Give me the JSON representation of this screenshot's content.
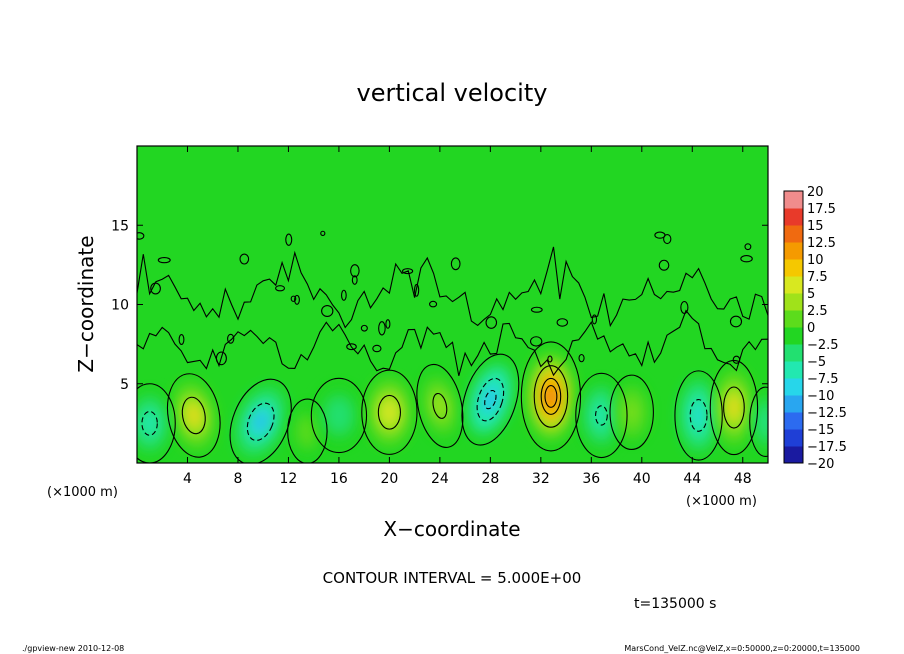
{
  "chart_data": {
    "type": "heatmap",
    "title": "vertical velocity",
    "xlabel": "X−coordinate",
    "ylabel": "Z−coordinate",
    "x_unit_label": "(×1000 m)",
    "y_unit_label": "(×1000 m)",
    "xlim": [
      0,
      50
    ],
    "ylim": [
      0,
      20
    ],
    "x_ticks": [
      4,
      8,
      12,
      16,
      20,
      24,
      28,
      32,
      36,
      40,
      44,
      48
    ],
    "y_ticks": [
      5,
      10,
      15
    ],
    "contour_interval_text": "CONTOUR INTERVAL = 5.000E+00",
    "time_text": "t=135000 s",
    "colorbar": {
      "levels": [
        "20",
        "17.5",
        "15",
        "12.5",
        "10",
        "7.5",
        "5",
        "2.5",
        "0",
        "−2.5",
        "−5",
        "−7.5",
        "−10",
        "−12.5",
        "−15",
        "−17.5",
        "−20"
      ],
      "colors": [
        "#7b1fa2",
        "#1a1aa0",
        "#1f3fd6",
        "#2c6bf0",
        "#29a6f0",
        "#27d6ea",
        "#22e8b0",
        "#22e070",
        "#22d622",
        "#5cdc1c",
        "#a0e21a",
        "#d8e820",
        "#f5c800",
        "#f59a00",
        "#f06a10",
        "#e83a2a",
        "#f08c8c"
      ]
    },
    "cells": [
      {
        "x": 4.5,
        "z": 3.0,
        "w": -0.5,
        "peak": 9,
        "sx": 1.3,
        "sz": 1.7
      },
      {
        "x": 1.0,
        "z": 2.5,
        "w": 0,
        "peak": -6,
        "sx": 1.3,
        "sz": 1.6
      },
      {
        "x": 9.8,
        "z": 2.6,
        "w": 1.1,
        "peak": -9,
        "sx": 1.4,
        "sz": 1.8
      },
      {
        "x": 13.5,
        "z": 2.0,
        "w": 0,
        "peak": 3,
        "sx": 1.0,
        "sz": 1.3
      },
      {
        "x": 16.0,
        "z": 3.0,
        "w": 0,
        "peak": -3,
        "sx": 1.4,
        "sz": 1.5
      },
      {
        "x": 20.0,
        "z": 3.2,
        "w": 0,
        "peak": 8,
        "sx": 1.4,
        "sz": 1.7
      },
      {
        "x": 24.0,
        "z": 3.6,
        "w": -0.6,
        "peak": 6,
        "sx": 1.1,
        "sz": 1.7
      },
      {
        "x": 28.0,
        "z": 4.0,
        "w": 0.9,
        "peak": -10,
        "sx": 1.3,
        "sz": 1.9
      },
      {
        "x": 32.8,
        "z": 4.2,
        "w": 0,
        "peak": 15,
        "sx": 1.5,
        "sz": 2.2
      },
      {
        "x": 36.8,
        "z": 3.0,
        "w": 0,
        "peak": -5,
        "sx": 1.3,
        "sz": 1.7
      },
      {
        "x": 39.2,
        "z": 3.2,
        "w": 0,
        "peak": 4,
        "sx": 1.1,
        "sz": 1.5
      },
      {
        "x": 44.5,
        "z": 3.0,
        "w": 0,
        "peak": -7,
        "sx": 1.2,
        "sz": 1.8
      },
      {
        "x": 47.3,
        "z": 3.5,
        "w": 0,
        "peak": 9,
        "sx": 1.2,
        "sz": 1.9
      },
      {
        "x": 49.8,
        "z": 2.6,
        "w": 0,
        "peak": -4,
        "sx": 0.8,
        "sz": 1.4
      }
    ]
  },
  "footer": {
    "left": "./gpview-new  2010-12-08",
    "right": "MarsCond_VelZ.nc@VelZ,x=0:50000,z=0:20000,t=135000"
  }
}
